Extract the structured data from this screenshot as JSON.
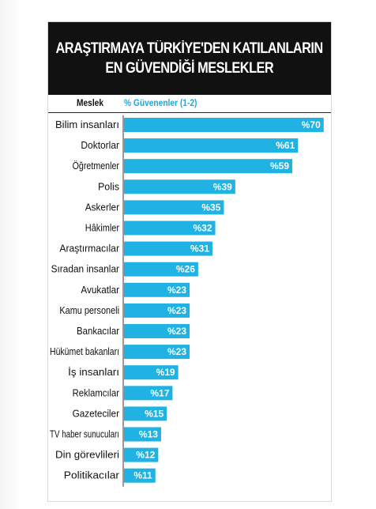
{
  "chart_data": {
    "type": "bar",
    "orientation": "horizontal",
    "title_lines": [
      "ARAŞTIRMAYA TÜRKİYE'DEN KATILANLARIN",
      "EN GÜVENDİĞİ MESLEKLER"
    ],
    "category_header": "Meslek",
    "value_header": "% Güvenenler (1-2)",
    "categories": [
      "Bilim insanları",
      "Doktorlar",
      "Öğretmenler",
      "Polis",
      "Askerler",
      "Hâkimler",
      "Araştırmacılar",
      "Sıradan insanlar",
      "Avukatlar",
      "Kamu personeli",
      "Bankacılar",
      "Hükümet bakanları",
      "İş insanları",
      "Reklamcılar",
      "Gazeteciler",
      "TV haber sunucuları",
      "Din görevlileri",
      "Politikacılar"
    ],
    "values": [
      70,
      61,
      59,
      39,
      35,
      32,
      31,
      26,
      23,
      23,
      23,
      23,
      19,
      17,
      15,
      13,
      12,
      11
    ],
    "value_labels": [
      "%70",
      "%61",
      "%59",
      "%39",
      "%35",
      "%32",
      "%31",
      "%26",
      "%23",
      "%23",
      "%23",
      "%23",
      "%19",
      "%17",
      "%15",
      "%13",
      "%12",
      "%11"
    ],
    "bar_color": "#1fb2e3",
    "xlim": [
      0,
      72
    ]
  }
}
